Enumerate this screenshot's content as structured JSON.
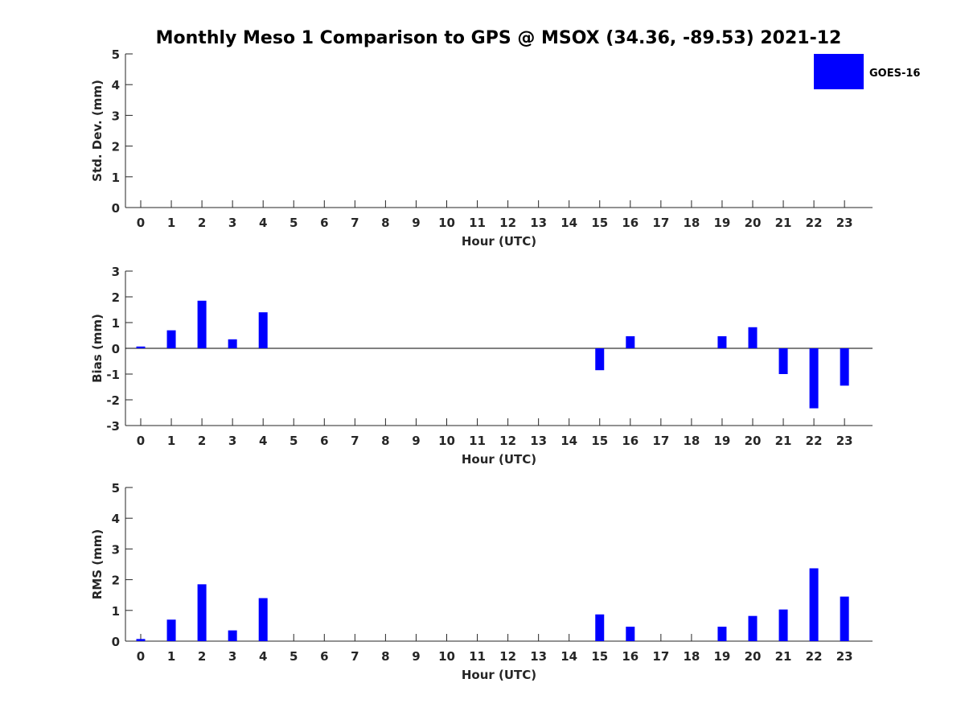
{
  "figure": {
    "title": "Monthly Meso 1 Comparison to GPS @ MSOX (34.36, -89.53) 2021-12",
    "legend": {
      "label": "GOES-16",
      "color": "#0000ff"
    }
  },
  "chart_data": [
    {
      "type": "bar",
      "title": "Monthly Meso 1 Comparison to GPS @ MSOX (34.36, -89.53) 2021-12",
      "xlabel": "Hour (UTC)",
      "ylabel": "Std. Dev. (mm)",
      "categories": [
        "0",
        "1",
        "2",
        "3",
        "4",
        "5",
        "6",
        "7",
        "8",
        "9",
        "10",
        "11",
        "12",
        "13",
        "14",
        "15",
        "16",
        "17",
        "18",
        "19",
        "20",
        "21",
        "22",
        "23"
      ],
      "series": [
        {
          "name": "GOES-16",
          "color": "#0000ff",
          "values": [
            null,
            null,
            null,
            null,
            null,
            null,
            null,
            null,
            null,
            null,
            null,
            null,
            null,
            null,
            null,
            null,
            null,
            null,
            null,
            null,
            null,
            null,
            null,
            null
          ]
        }
      ],
      "ylim": [
        0,
        5
      ],
      "yticks": [
        0,
        1,
        2,
        3,
        4,
        5
      ],
      "legend": "top-right",
      "grid": false
    },
    {
      "type": "bar",
      "xlabel": "Hour (UTC)",
      "ylabel": "Bias (mm)",
      "categories": [
        "0",
        "1",
        "2",
        "3",
        "4",
        "5",
        "6",
        "7",
        "8",
        "9",
        "10",
        "11",
        "12",
        "13",
        "14",
        "15",
        "16",
        "17",
        "18",
        "19",
        "20",
        "21",
        "22",
        "23"
      ],
      "series": [
        {
          "name": "GOES-16",
          "color": "#0000ff",
          "values": [
            0.07,
            0.7,
            1.85,
            0.35,
            1.4,
            null,
            null,
            null,
            null,
            null,
            null,
            null,
            null,
            null,
            null,
            -0.85,
            0.47,
            null,
            null,
            0.47,
            0.82,
            -1.0,
            -2.33,
            -1.45
          ]
        }
      ],
      "ylim": [
        -3,
        3
      ],
      "yticks": [
        -3,
        -2,
        -1,
        0,
        1,
        2,
        3
      ],
      "zero_line": true,
      "grid": false
    },
    {
      "type": "bar",
      "xlabel": "Hour (UTC)",
      "ylabel": "RMS (mm)",
      "categories": [
        "0",
        "1",
        "2",
        "3",
        "4",
        "5",
        "6",
        "7",
        "8",
        "9",
        "10",
        "11",
        "12",
        "13",
        "14",
        "15",
        "16",
        "17",
        "18",
        "19",
        "20",
        "21",
        "22",
        "23"
      ],
      "series": [
        {
          "name": "GOES-16",
          "color": "#0000ff",
          "values": [
            0.07,
            0.7,
            1.85,
            0.35,
            1.4,
            null,
            null,
            null,
            null,
            null,
            null,
            null,
            null,
            null,
            null,
            0.87,
            0.47,
            null,
            null,
            0.47,
            0.82,
            1.03,
            2.37,
            1.45
          ]
        }
      ],
      "ylim": [
        0,
        5
      ],
      "yticks": [
        0,
        1,
        2,
        3,
        4,
        5
      ],
      "grid": false
    }
  ]
}
